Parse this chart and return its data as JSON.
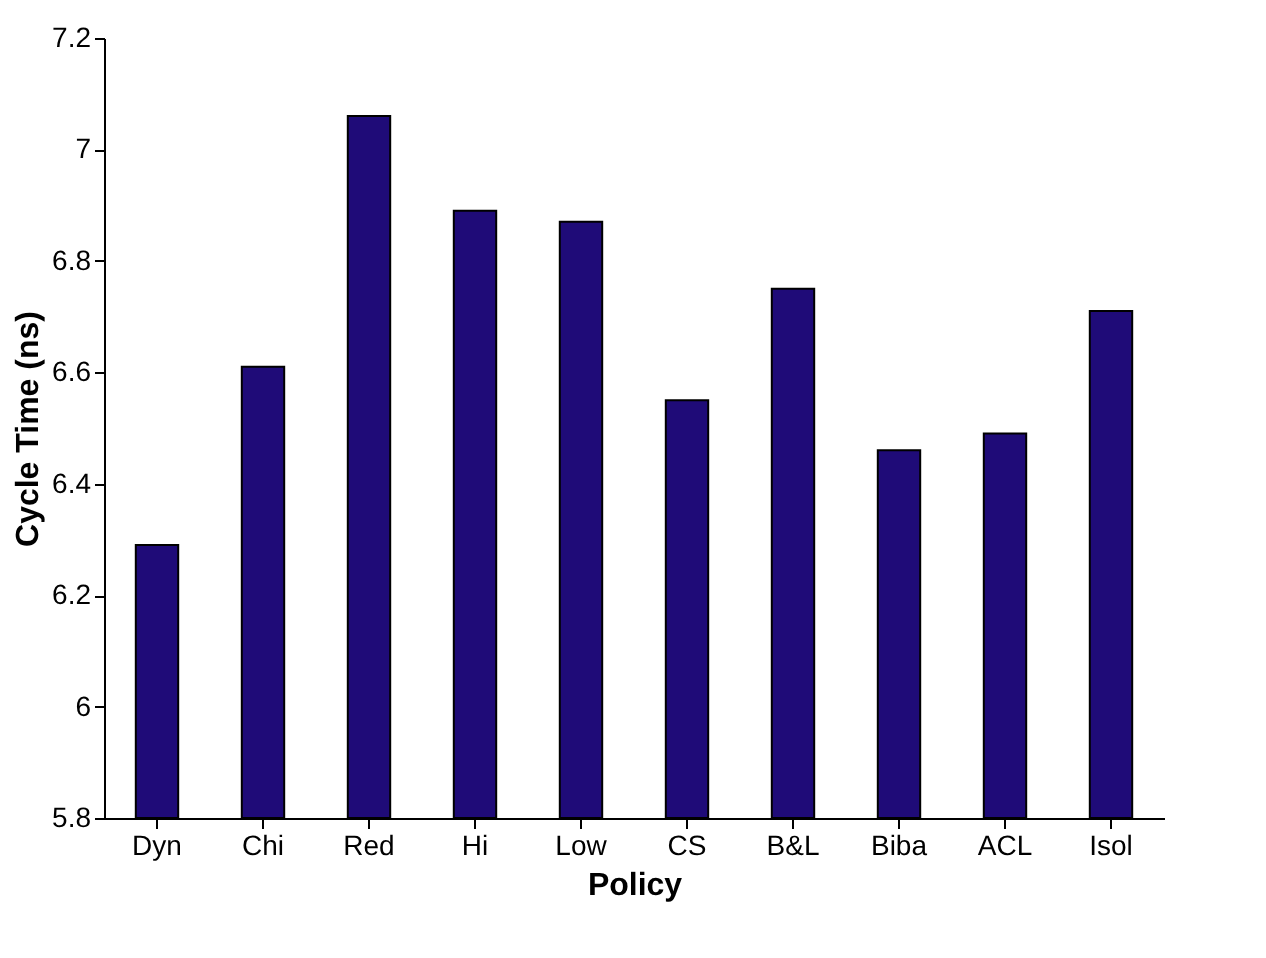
{
  "chart_data": {
    "type": "bar",
    "xlabel": "Policy",
    "ylabel": "Cycle Time (ns)",
    "categories": [
      "Dyn",
      "Chi",
      "Red",
      "Hi",
      "Low",
      "CS",
      "B&L",
      "Biba",
      "ACL",
      "Isol"
    ],
    "values": [
      6.29,
      6.61,
      7.06,
      6.89,
      6.87,
      6.55,
      6.75,
      6.46,
      6.49,
      6.71
    ],
    "color": "#1f0b78",
    "ylim": [
      5.8,
      7.2
    ],
    "yticks": [
      5.8,
      6,
      6.2,
      6.4,
      6.6,
      6.8,
      7,
      7.2
    ],
    "grid": false
  }
}
